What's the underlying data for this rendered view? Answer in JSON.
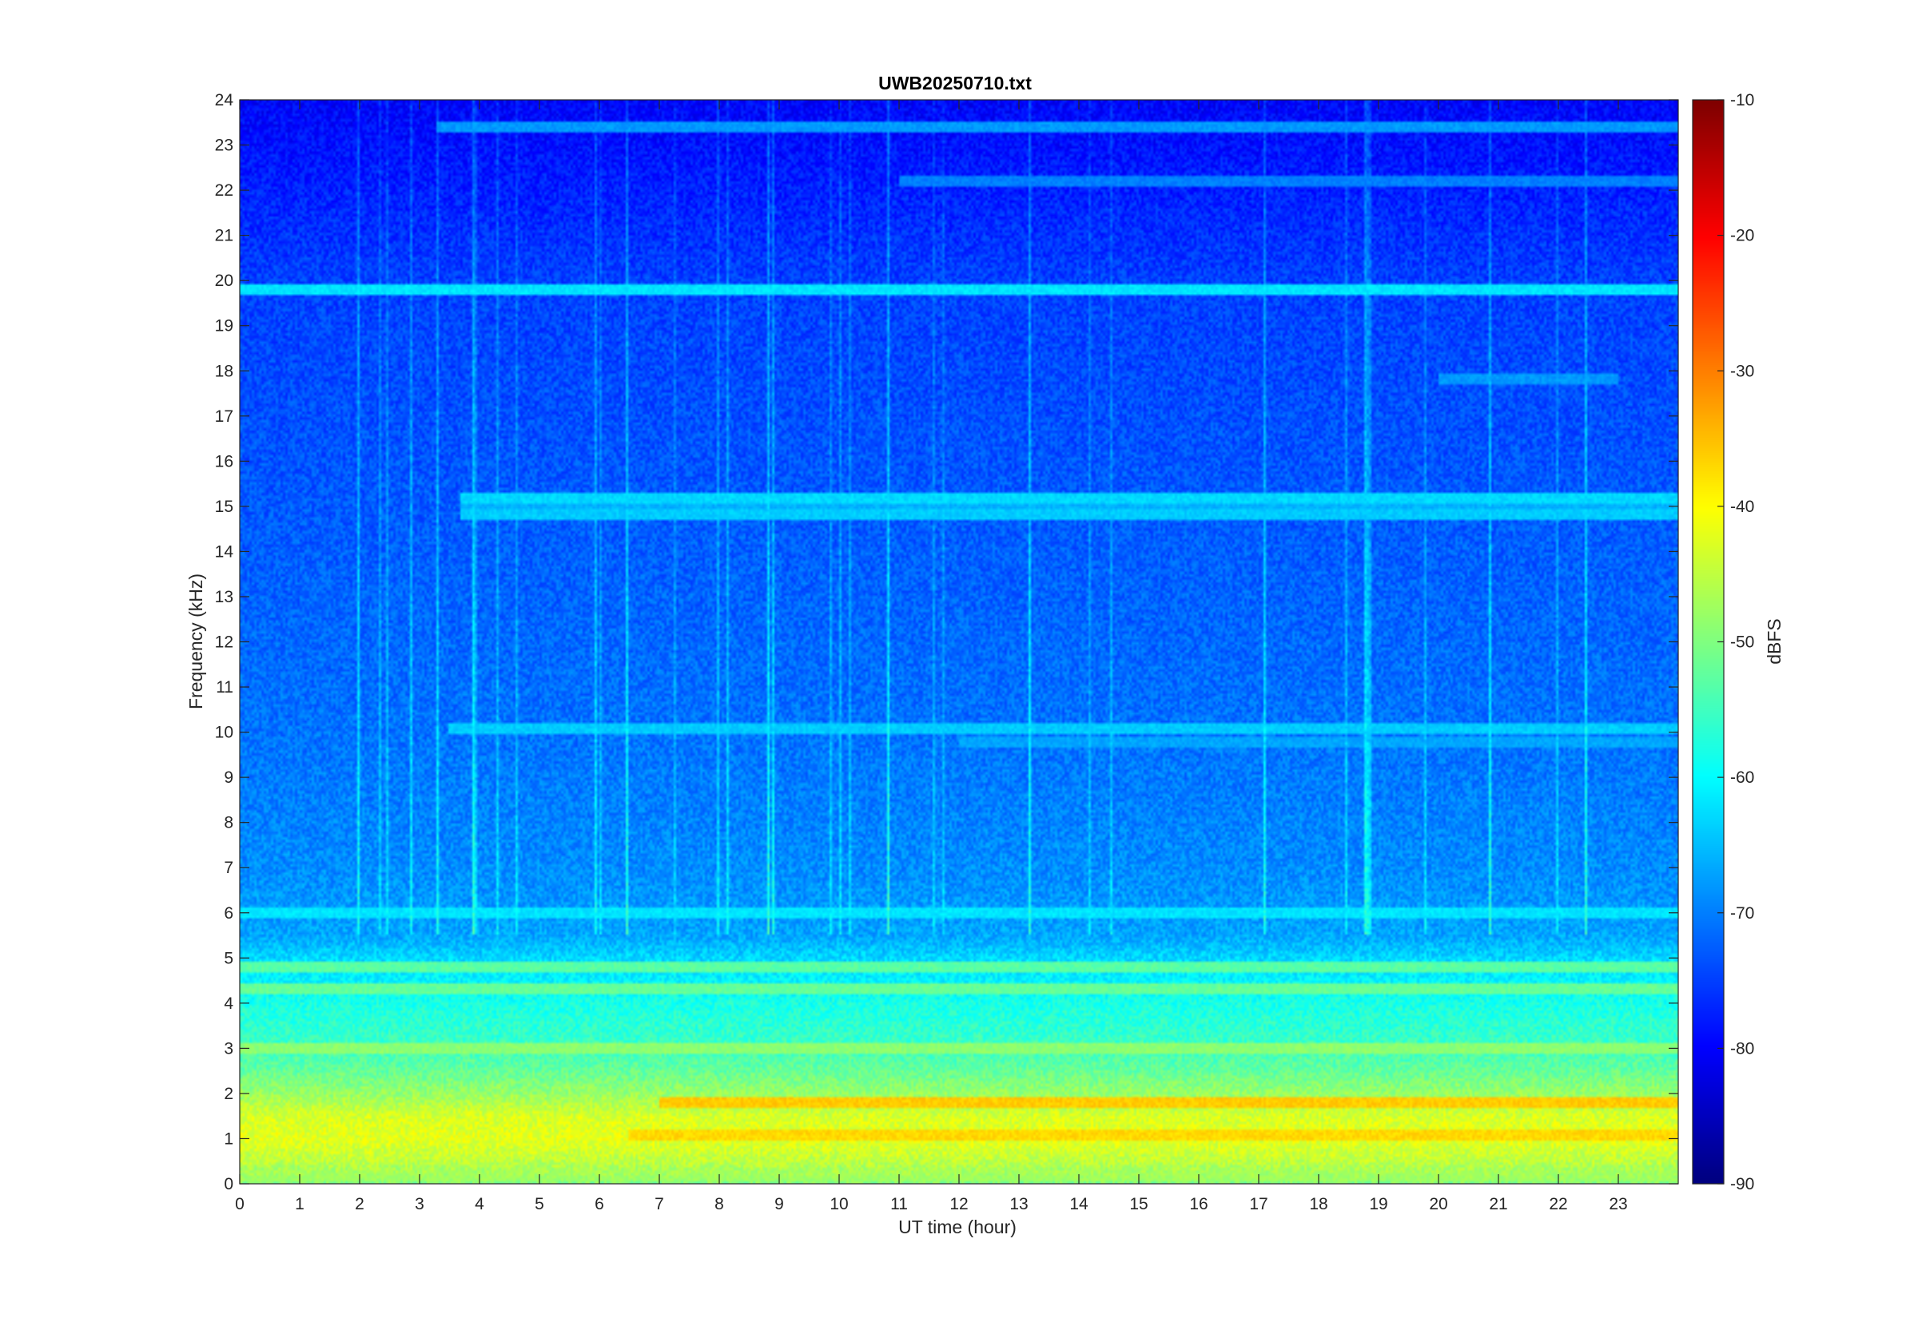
{
  "chart_data": {
    "type": "heatmap",
    "title": "UWB20250710.txt",
    "xlabel": "UT time (hour)",
    "ylabel": "Frequency (kHz)",
    "xlim": [
      0,
      24
    ],
    "ylim": [
      0,
      24
    ],
    "x_ticks": [
      0,
      1,
      2,
      3,
      4,
      5,
      6,
      7,
      8,
      9,
      10,
      11,
      12,
      13,
      14,
      15,
      16,
      17,
      18,
      19,
      20,
      21,
      22,
      23
    ],
    "y_ticks": [
      0,
      1,
      2,
      3,
      4,
      5,
      6,
      7,
      8,
      9,
      10,
      11,
      12,
      13,
      14,
      15,
      16,
      17,
      18,
      19,
      20,
      21,
      22,
      23,
      24
    ],
    "colorbar": {
      "label": "dBFS",
      "range": [
        -90,
        -10
      ],
      "ticks": [
        -90,
        -80,
        -70,
        -60,
        -50,
        -40,
        -30,
        -20,
        -10
      ],
      "colormap": "jet"
    },
    "level_profile": [
      {
        "freq_khz": 0.0,
        "dbfs": -50
      },
      {
        "freq_khz": 0.5,
        "dbfs": -45
      },
      {
        "freq_khz": 1.0,
        "dbfs": -42
      },
      {
        "freq_khz": 1.5,
        "dbfs": -43
      },
      {
        "freq_khz": 2.0,
        "dbfs": -48
      },
      {
        "freq_khz": 2.5,
        "dbfs": -52
      },
      {
        "freq_khz": 3.0,
        "dbfs": -55
      },
      {
        "freq_khz": 4.0,
        "dbfs": -58
      },
      {
        "freq_khz": 5.0,
        "dbfs": -63
      },
      {
        "freq_khz": 5.5,
        "dbfs": -67
      },
      {
        "freq_khz": 7.0,
        "dbfs": -69
      },
      {
        "freq_khz": 10.0,
        "dbfs": -71
      },
      {
        "freq_khz": 15.0,
        "dbfs": -73
      },
      {
        "freq_khz": 20.0,
        "dbfs": -75
      },
      {
        "freq_khz": 24.0,
        "dbfs": -80
      }
    ],
    "tone_lines": [
      {
        "freq_khz": 19.8,
        "dbfs": -62,
        "start_hour": 0,
        "end_hour": 24
      },
      {
        "freq_khz": 23.4,
        "dbfs": -68,
        "start_hour": 3.3,
        "end_hour": 24
      },
      {
        "freq_khz": 22.2,
        "dbfs": -70,
        "start_hour": 11,
        "end_hour": 24
      },
      {
        "freq_khz": 17.8,
        "dbfs": -68,
        "start_hour": 20,
        "end_hour": 23
      },
      {
        "freq_khz": 15.2,
        "dbfs": -63,
        "start_hour": 3.7,
        "end_hour": 24
      },
      {
        "freq_khz": 15.0,
        "dbfs": -66,
        "start_hour": 3.7,
        "end_hour": 24
      },
      {
        "freq_khz": 14.8,
        "dbfs": -64,
        "start_hour": 3.7,
        "end_hour": 24
      },
      {
        "freq_khz": 10.1,
        "dbfs": -64,
        "start_hour": 3.5,
        "end_hour": 24
      },
      {
        "freq_khz": 9.8,
        "dbfs": -67,
        "start_hour": 12,
        "end_hour": 24
      },
      {
        "freq_khz": 6.0,
        "dbfs": -62,
        "start_hour": 0,
        "end_hour": 24
      },
      {
        "freq_khz": 4.8,
        "dbfs": -53,
        "start_hour": 0,
        "end_hour": 24
      },
      {
        "freq_khz": 4.3,
        "dbfs": -52,
        "start_hour": 0,
        "end_hour": 24
      },
      {
        "freq_khz": 3.0,
        "dbfs": -49,
        "start_hour": 0,
        "end_hour": 24
      },
      {
        "freq_khz": 1.8,
        "dbfs": -36,
        "start_hour": 7,
        "end_hour": 24
      },
      {
        "freq_khz": 1.1,
        "dbfs": -37,
        "start_hour": 6.5,
        "end_hour": 24
      },
      {
        "freq_khz": 0.2,
        "dbfs": -48,
        "start_hour": 0,
        "end_hour": 24
      }
    ]
  }
}
